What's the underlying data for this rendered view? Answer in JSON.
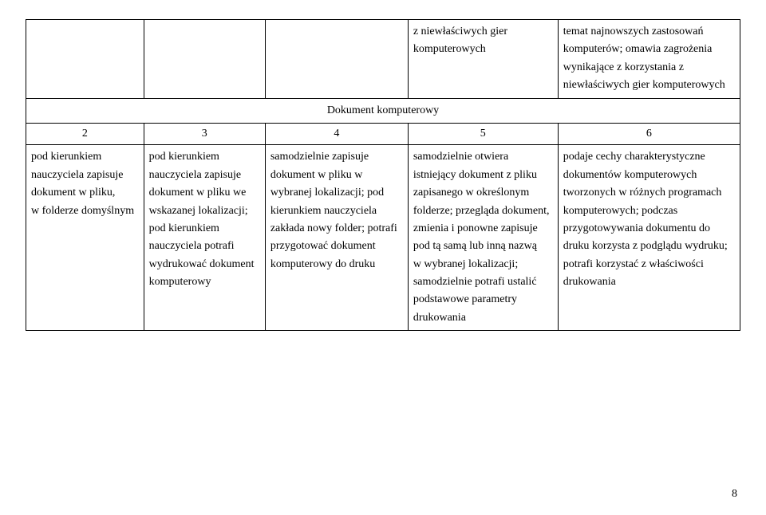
{
  "table": {
    "colors": {
      "border": "#000000",
      "text": "#000000",
      "background": "#ffffff"
    },
    "font": {
      "family": "Times New Roman",
      "size_pt": 11,
      "line_height": 1.6
    },
    "column_widths_pct": [
      16.5,
      17,
      20,
      21,
      25.5
    ],
    "row0": {
      "c2": "",
      "c3": "",
      "c4": "",
      "c5": "z niewłaściwych gier komputerowych",
      "c6": "temat najnowszych zastosowań komputerów; omawia zagrożenia wynikające z korzystania z niewłaściwych gier komputerowych"
    },
    "section_header": "Dokument komputerowy",
    "numbers": {
      "c2": "2",
      "c3": "3",
      "c4": "4",
      "c5": "5",
      "c6": "6"
    },
    "row1": {
      "c2": "pod kierunkiem nauczyciela zapisuje dokument w pliku, w folderze domyślnym",
      "c3": "pod kierunkiem nauczyciela zapisuje dokument w pliku we wskazanej lokalizacji; pod kierunkiem nauczyciela potrafi wydrukować dokument komputerowy",
      "c4": "samodzielnie zapisuje dokument w pliku w wybranej lokalizacji; pod kierunkiem nauczyciela zakłada nowy folder; potrafi przygotować dokument komputerowy do druku",
      "c5": "samodzielnie otwiera istniejący dokument z pliku zapisanego w określonym folderze; przegląda dokument, zmienia i ponowne zapisuje pod tą samą lub inną nazwą w wybranej lokalizacji; samodzielnie potrafi ustalić podstawowe parametry drukowania",
      "c6": "podaje cechy charakterystyczne dokumentów komputerowych tworzonych w różnych programach komputerowych; podczas przygotowywania dokumentu do druku korzysta z podglądu wydruku; potrafi korzystać z właściwości drukowania"
    }
  },
  "page_number": "8"
}
